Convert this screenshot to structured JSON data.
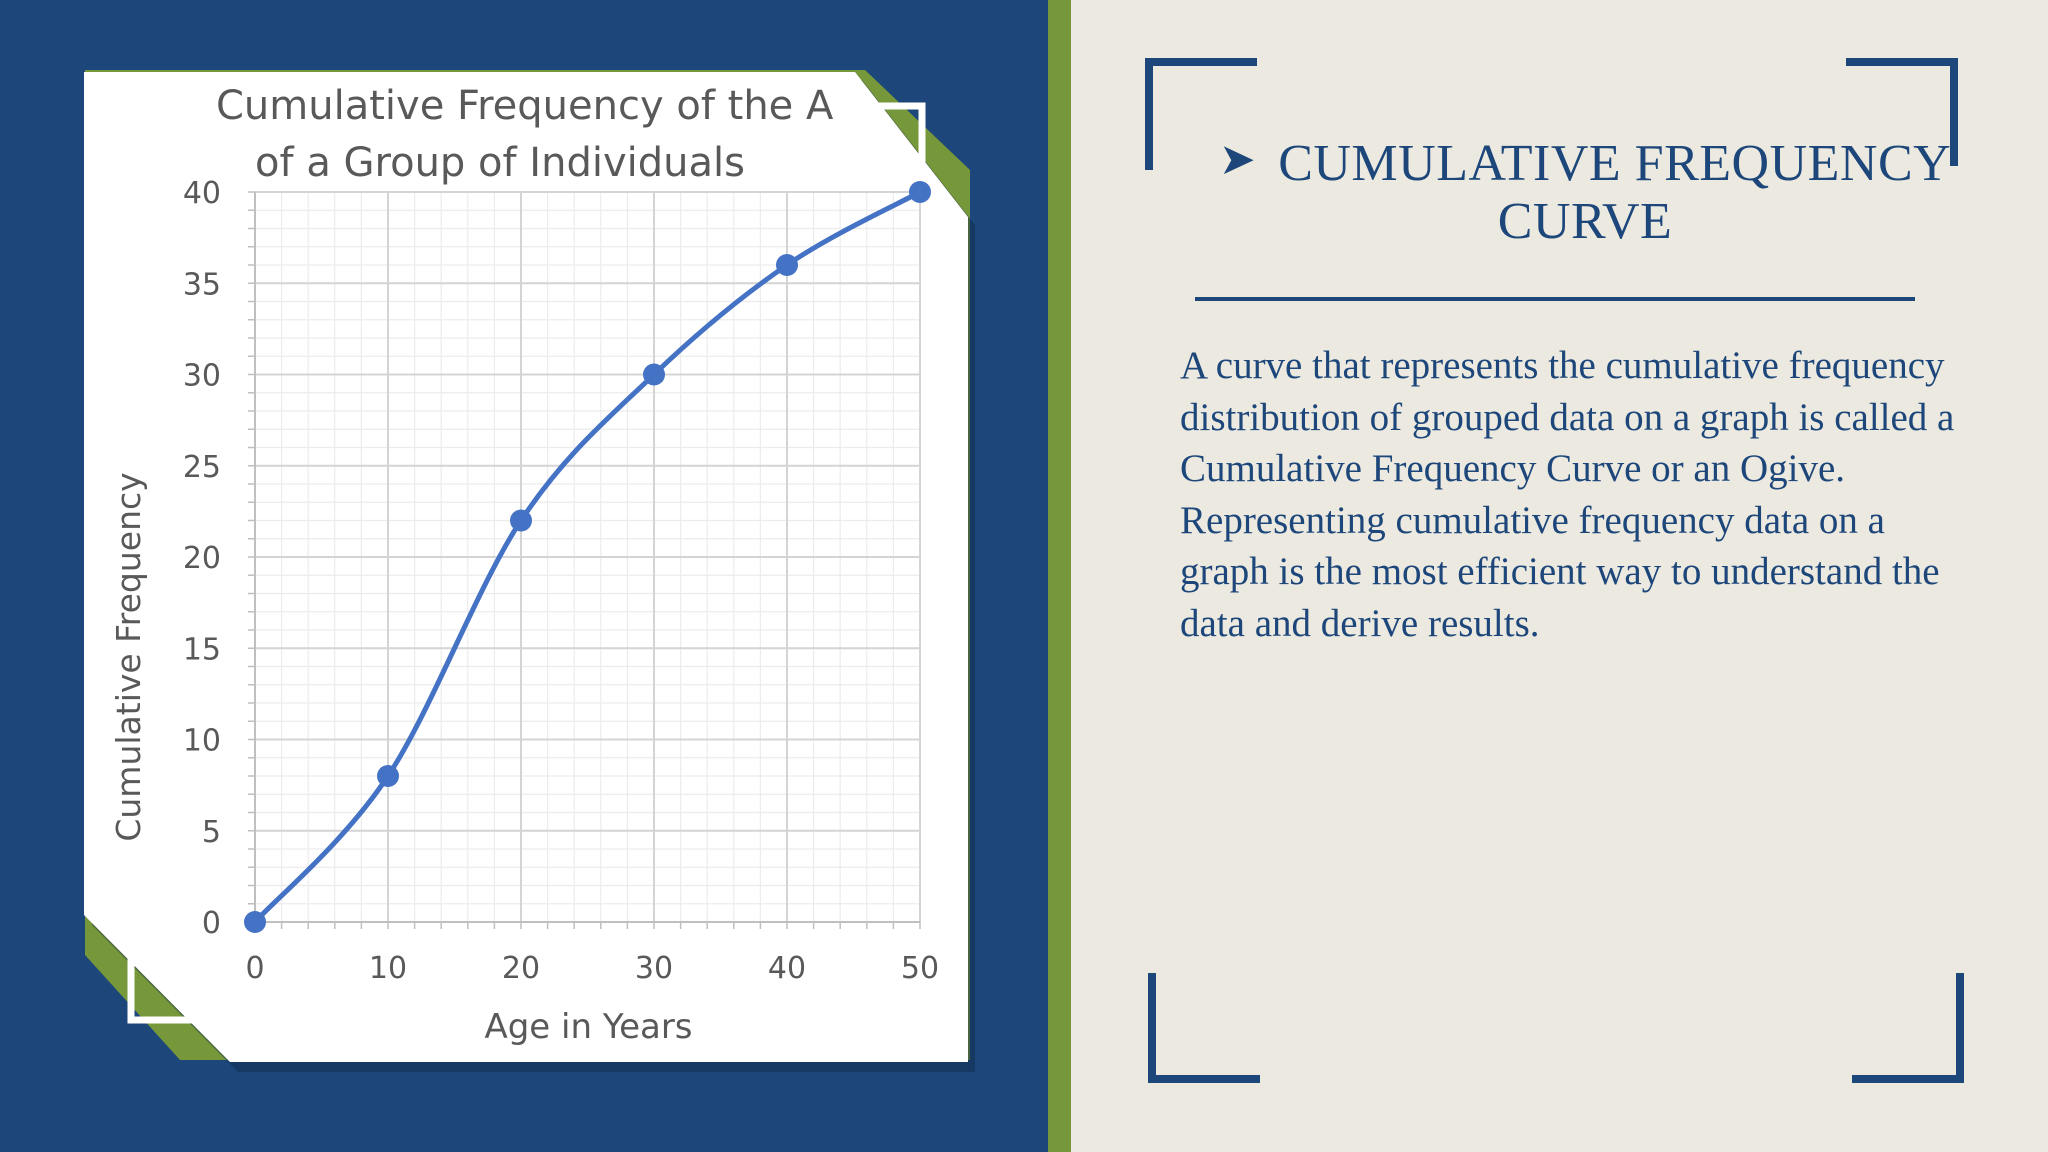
{
  "slide": {
    "heading": "CUMULATIVE FREQUENCY CURVE",
    "heading_icon": "arrow-bullet-icon",
    "body": "A curve that represents the cumulative frequency distribution of grouped data on a graph is called a Cumulative Frequency Curve or an Ogive. Representing cumulative frequency data on a graph is the most efficient way to understand the data and derive results.",
    "colors": {
      "navy": "#1d477a",
      "green": "#76973a",
      "background": "#ece9e0",
      "line": "#4472c4"
    }
  },
  "chart_data": {
    "type": "line",
    "title_line1": "Cumulative Frequency of the A",
    "title_line2": "of a Group of Individuals",
    "xlabel": "Age in Years",
    "ylabel": "Cumulative Frequency",
    "x_ticks": [
      "0",
      "10",
      "20",
      "30",
      "40",
      "50"
    ],
    "y_ticks": [
      "0",
      "5",
      "10",
      "15",
      "20",
      "25",
      "30",
      "35",
      "40"
    ],
    "xlim": [
      0,
      50
    ],
    "ylim": [
      0,
      40
    ],
    "grid": true,
    "smooth": true,
    "series": [
      {
        "x": [
          0,
          10,
          20,
          30,
          40,
          50
        ],
        "values": [
          0,
          8,
          22,
          30,
          36,
          40
        ]
      }
    ]
  }
}
